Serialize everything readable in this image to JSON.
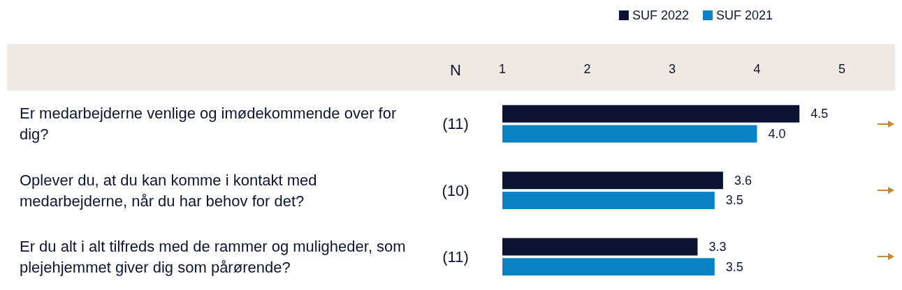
{
  "chart_data": {
    "type": "bar",
    "orientation": "horizontal",
    "categories": [
      "Er medarbejderne venlige og imødekommende over for dig?",
      "Oplever du, at du kan komme i kontakt med medarbejderne, når du har behov for det?",
      "Er du alt i alt tilfreds med de rammer og muligheder, som plejehjemmet giver dig som pårørende?"
    ],
    "series": [
      {
        "name": "SUF 2022",
        "color": "#0b1533",
        "values": [
          4.5,
          3.6,
          3.3
        ],
        "value_labels": [
          "4.5",
          "3.6",
          "3.3"
        ]
      },
      {
        "name": "SUF 2021",
        "color": "#0a82c4",
        "values": [
          4.0,
          3.5,
          3.5
        ],
        "value_labels": [
          "4.0",
          "3.5",
          "3.5"
        ]
      }
    ],
    "xlim": [
      1,
      5
    ],
    "xticks": [
      1,
      2,
      3,
      4,
      5
    ],
    "annotations": [
      "N",
      "(11)",
      "(10)",
      "(11)"
    ],
    "legend": "top right",
    "grid": false
  }
}
